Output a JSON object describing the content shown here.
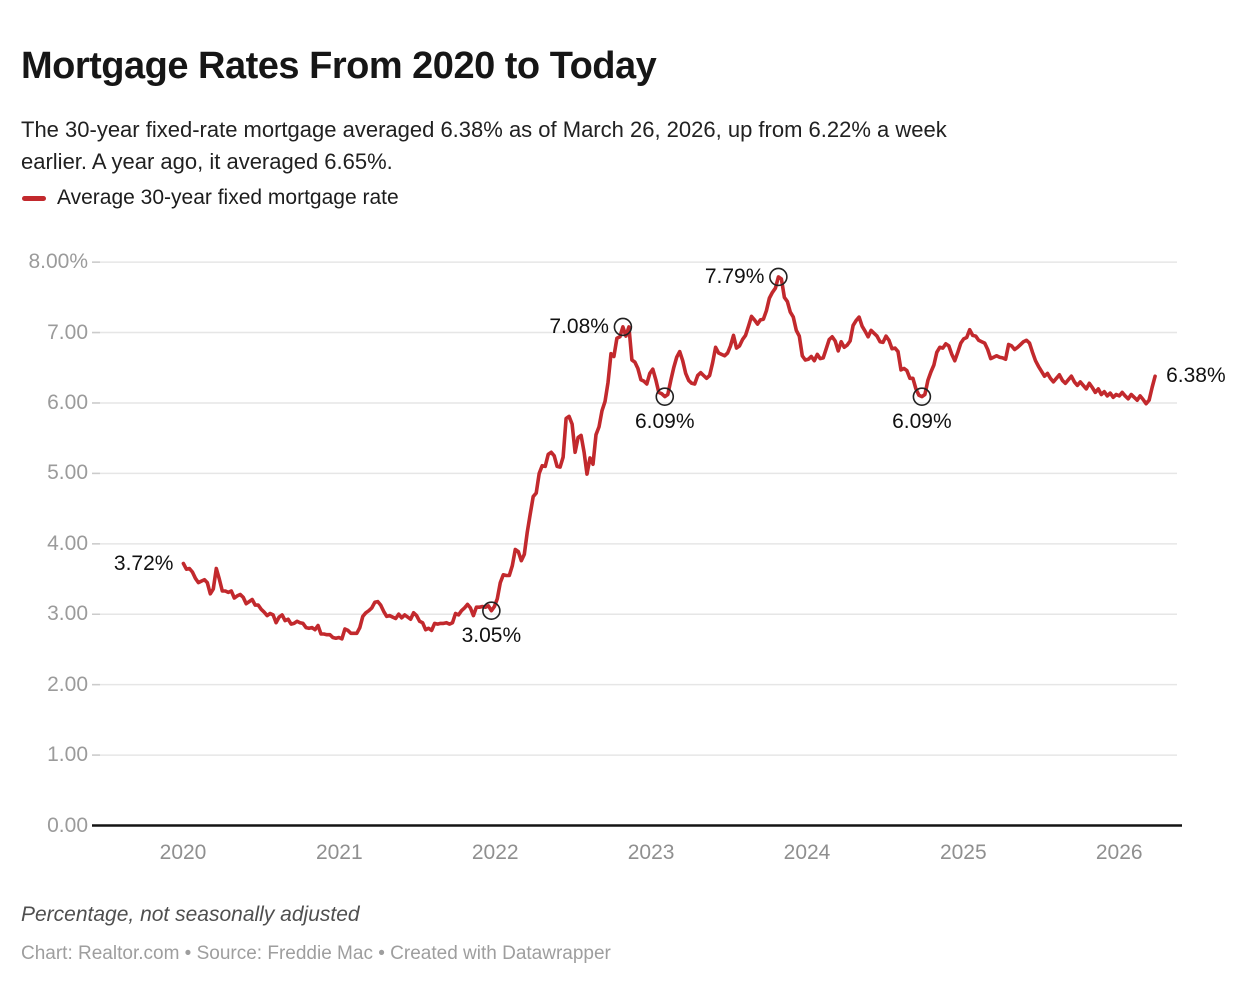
{
  "header": {
    "title": "Mortgage Rates From 2020 to Today",
    "subtitle_lines": [
      "The 30-year fixed-rate mortgage averaged 6.38% as of March 26, 2026, up from 6.22% a week",
      "earlier. A year ago, it averaged 6.65%."
    ]
  },
  "legend": {
    "label": "Average 30-year fixed mortgage rate",
    "swatch_color": "#c2292d"
  },
  "footer": {
    "note": "Percentage, not seasonally adjusted",
    "credit": "Chart: Realtor.com • Source: Freddie Mac • Created with Datawrapper"
  },
  "chart_data": {
    "type": "line",
    "title": "Mortgage Rates From 2020 to Today",
    "xlabel": "",
    "ylabel": "Percentage, not seasonally adjusted",
    "grid": "horizontal",
    "legend_position": "top-left",
    "colors": {
      "line": "#c2292d",
      "gridline": "#e6e6e6",
      "tick_stub": "#cbcbcb",
      "baseline": "#141414",
      "marker_stroke": "#222222"
    },
    "y_axis": {
      "range": [
        0,
        8.3
      ],
      "ticks": [
        {
          "v": 0,
          "label": "0.00"
        },
        {
          "v": 1,
          "label": "1.00"
        },
        {
          "v": 2,
          "label": "2.00"
        },
        {
          "v": 3,
          "label": "3.00"
        },
        {
          "v": 4,
          "label": "4.00"
        },
        {
          "v": 5,
          "label": "5.00"
        },
        {
          "v": 6,
          "label": "6.00"
        },
        {
          "v": 7,
          "label": "7.00"
        },
        {
          "v": 8,
          "label": "8.00%"
        }
      ]
    },
    "x_axis": {
      "range": [
        "2020-01-02",
        "2026-03-26"
      ],
      "tick_years": [
        2020,
        2021,
        2022,
        2023,
        2024,
        2025,
        2026
      ]
    },
    "series": [
      {
        "name": "Average 30-year fixed mortgage rate",
        "unit": "percent",
        "cadence": "weekly",
        "weekly": [
          {
            "start": "2020-01-02",
            "values": [
              3.72,
              3.64,
              3.65,
              3.6,
              3.51,
              3.45,
              3.47,
              3.49,
              3.45,
              3.29,
              3.36,
              3.65,
              3.5,
              3.33,
              3.33,
              3.31,
              3.33,
              3.23,
              3.26,
              3.28,
              3.24,
              3.15,
              3.18,
              3.21,
              3.13,
              3.13,
              3.07,
              3.03,
              2.98,
              3.01,
              2.99,
              2.88,
              2.96,
              2.99,
              2.91,
              2.93,
              2.86,
              2.87,
              2.9,
              2.88,
              2.87,
              2.81,
              2.8,
              2.81,
              2.78,
              2.84,
              2.72,
              2.72,
              2.71,
              2.71,
              2.67,
              2.66,
              2.67
            ]
          },
          {
            "start": "2021-01-07",
            "values": [
              2.65,
              2.79,
              2.77,
              2.73,
              2.73,
              2.73,
              2.81,
              2.97,
              3.02,
              3.05,
              3.09,
              3.17,
              3.18,
              3.13,
              3.04,
              2.97,
              2.98,
              2.96,
              2.94,
              3.0,
              2.95,
              2.99,
              2.96,
              2.93,
              3.02,
              2.98,
              2.9,
              2.88,
              2.78,
              2.8,
              2.77,
              2.87,
              2.86,
              2.87,
              2.87,
              2.88,
              2.86,
              2.88,
              3.01,
              2.99,
              3.05,
              3.09,
              3.14,
              3.09,
              2.98,
              3.1,
              3.1,
              3.11,
              3.1,
              3.12,
              3.05,
              3.11
            ]
          },
          {
            "start": "2022-01-06",
            "values": [
              3.22,
              3.45,
              3.56,
              3.55,
              3.55,
              3.69,
              3.92,
              3.89,
              3.76,
              3.85,
              4.16,
              4.42,
              4.67,
              4.72,
              5.0,
              5.11,
              5.1,
              5.27,
              5.3,
              5.25,
              5.1,
              5.09,
              5.23,
              5.78,
              5.81,
              5.7,
              5.3,
              5.51,
              5.54,
              5.3,
              4.99,
              5.22,
              5.13,
              5.55,
              5.66,
              5.89,
              6.02,
              6.29,
              6.7,
              6.66,
              6.92,
              6.94,
              7.08,
              6.95,
              7.08,
              6.61,
              6.58,
              6.49,
              6.33,
              6.31,
              6.27,
              6.42
            ]
          },
          {
            "start": "2023-01-05",
            "values": [
              6.48,
              6.33,
              6.15,
              6.13,
              6.09,
              6.12,
              6.32,
              6.5,
              6.65,
              6.73,
              6.6,
              6.42,
              6.32,
              6.28,
              6.27,
              6.39,
              6.43,
              6.39,
              6.35,
              6.39,
              6.57,
              6.79,
              6.71,
              6.69,
              6.67,
              6.71,
              6.81,
              6.96,
              6.78,
              6.81,
              6.9,
              6.96,
              7.09,
              7.23,
              7.18,
              7.12,
              7.18,
              7.19,
              7.31,
              7.49,
              7.57,
              7.63,
              7.79,
              7.76,
              7.5,
              7.44,
              7.29,
              7.22,
              7.03,
              6.95,
              6.67,
              6.61
            ]
          },
          {
            "start": "2024-01-04",
            "values": [
              6.62,
              6.66,
              6.6,
              6.69,
              6.63,
              6.64,
              6.77,
              6.9,
              6.94,
              6.88,
              6.74,
              6.87,
              6.79,
              6.82,
              6.88,
              7.1,
              7.17,
              7.22,
              7.09,
              7.02,
              6.94,
              7.03,
              6.99,
              6.95,
              6.87,
              6.86,
              6.95,
              6.89,
              6.77,
              6.78,
              6.73,
              6.47,
              6.49,
              6.46,
              6.35,
              6.35,
              6.2,
              6.11,
              6.09,
              6.12,
              6.32,
              6.44,
              6.54,
              6.72,
              6.79,
              6.78,
              6.84,
              6.81,
              6.69,
              6.6,
              6.72,
              6.85
            ]
          },
          {
            "start": "2025-01-02",
            "values": [
              6.91,
              6.93,
              7.04,
              6.96,
              6.95,
              6.89,
              6.87,
              6.85,
              6.76,
              6.63,
              6.65,
              6.67,
              6.65,
              6.64,
              6.62,
              6.83,
              6.81,
              6.76,
              6.79,
              6.83,
              6.87,
              6.89,
              6.85,
              6.72,
              6.6,
              6.52,
              6.45,
              6.38,
              6.42,
              6.35,
              6.3,
              6.35,
              6.4,
              6.32,
              6.28,
              6.33,
              6.38,
              6.3,
              6.25,
              6.3,
              6.25,
              6.2,
              6.28,
              6.22,
              6.15,
              6.2,
              6.12,
              6.16,
              6.1,
              6.14,
              6.08,
              6.12
            ]
          },
          {
            "start": "2026-01-01",
            "values": [
              6.1,
              6.15,
              6.1,
              6.06,
              6.12,
              6.08,
              6.04,
              6.1,
              6.05,
              5.99,
              6.04,
              6.22,
              6.38
            ]
          }
        ]
      }
    ],
    "annotations": [
      {
        "date": "2020-01-02",
        "value": 3.72,
        "label": "3.72%",
        "marker": false,
        "placement": "left"
      },
      {
        "date": "2021-12-23",
        "value": 3.05,
        "label": "3.05%",
        "marker": true,
        "placement": "below"
      },
      {
        "date": "2022-10-27",
        "value": 7.08,
        "label": "7.08%",
        "marker": true,
        "placement": "left"
      },
      {
        "date": "2023-02-02",
        "value": 6.09,
        "label": "6.09%",
        "marker": true,
        "placement": "below"
      },
      {
        "date": "2023-10-26",
        "value": 7.79,
        "label": "7.79%",
        "marker": true,
        "placement": "left"
      },
      {
        "date": "2024-09-26",
        "value": 6.09,
        "label": "6.09%",
        "marker": true,
        "placement": "below"
      },
      {
        "date": "2026-03-26",
        "value": 6.38,
        "label": "6.38%",
        "marker": false,
        "placement": "right"
      }
    ]
  }
}
